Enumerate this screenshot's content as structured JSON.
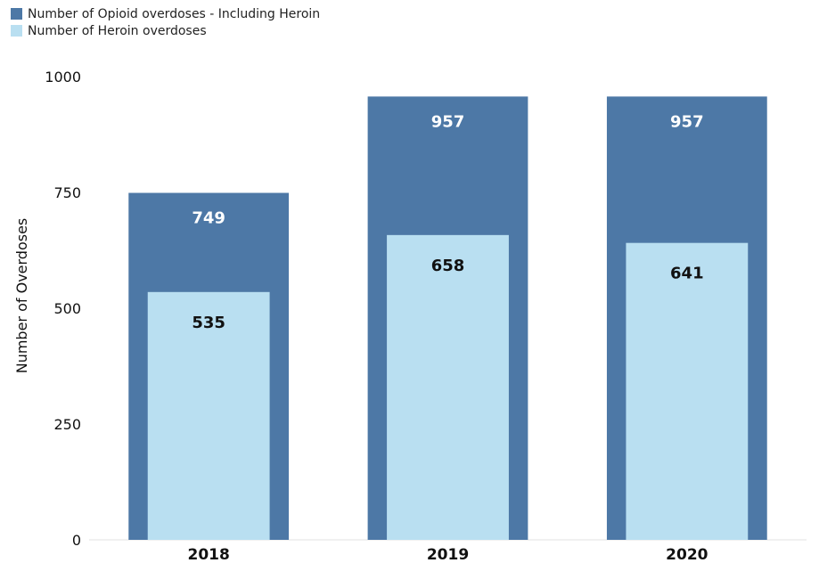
{
  "colors": {
    "opioid": "#4d78a6",
    "heroin": "#b9dff1"
  },
  "chart_data": {
    "type": "bar",
    "categories": [
      "2018",
      "2019",
      "2020"
    ],
    "series": [
      {
        "name": "Number of Opioid overdoses - Including Heroin",
        "values": [
          749,
          957,
          957
        ]
      },
      {
        "name": "Number of Heroin overdoses",
        "values": [
          535,
          658,
          641
        ]
      }
    ],
    "xlabel": "",
    "ylabel": "Number of Overdoses",
    "ylim": [
      0,
      1000
    ],
    "yticks": [
      0,
      250,
      500,
      750,
      1000
    ],
    "legend_position": "top-left",
    "grid": false
  }
}
